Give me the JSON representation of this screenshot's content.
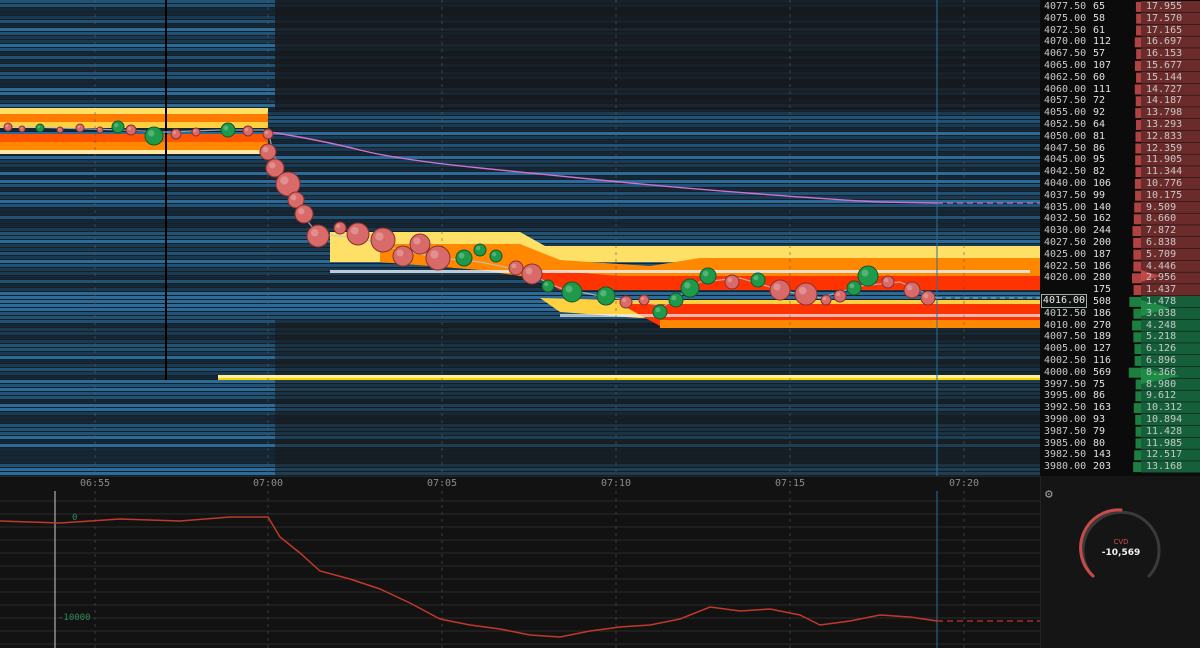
{
  "time_axis": {
    "labels": [
      "06:55",
      "07:00",
      "07:05",
      "07:10",
      "07:15",
      "07:20"
    ]
  },
  "price_ladder": {
    "current_price": "4016.00",
    "rows": [
      {
        "price": "4077.50",
        "vol": "65",
        "cum": "17.955",
        "side": "ask"
      },
      {
        "price": "4075.00",
        "vol": "58",
        "cum": "17.570",
        "side": "ask"
      },
      {
        "price": "4072.50",
        "vol": "61",
        "cum": "17.165",
        "side": "ask"
      },
      {
        "price": "4070.00",
        "vol": "112",
        "cum": "16.697",
        "side": "ask"
      },
      {
        "price": "4067.50",
        "vol": "57",
        "cum": "16.153",
        "side": "ask"
      },
      {
        "price": "4065.00",
        "vol": "107",
        "cum": "15.677",
        "side": "ask"
      },
      {
        "price": "4062.50",
        "vol": "60",
        "cum": "15.144",
        "side": "ask"
      },
      {
        "price": "4060.00",
        "vol": "111",
        "cum": "14.727",
        "side": "ask"
      },
      {
        "price": "4057.50",
        "vol": "72",
        "cum": "14.187",
        "side": "ask"
      },
      {
        "price": "4055.00",
        "vol": "92",
        "cum": "13.798",
        "side": "ask"
      },
      {
        "price": "4052.50",
        "vol": "64",
        "cum": "13.293",
        "side": "ask"
      },
      {
        "price": "4050.00",
        "vol": "81",
        "cum": "12.833",
        "side": "ask"
      },
      {
        "price": "4047.50",
        "vol": "86",
        "cum": "12.359",
        "side": "ask"
      },
      {
        "price": "4045.00",
        "vol": "95",
        "cum": "11.905",
        "side": "ask"
      },
      {
        "price": "4042.50",
        "vol": "82",
        "cum": "11.344",
        "side": "ask"
      },
      {
        "price": "4040.00",
        "vol": "106",
        "cum": "10.776",
        "side": "ask"
      },
      {
        "price": "4037.50",
        "vol": "99",
        "cum": "10.175",
        "side": "ask"
      },
      {
        "price": "4035.00",
        "vol": "140",
        "cum": "9.509",
        "side": "ask"
      },
      {
        "price": "4032.50",
        "vol": "162",
        "cum": "8.660",
        "side": "ask"
      },
      {
        "price": "4030.00",
        "vol": "244",
        "cum": "7.872",
        "side": "ask"
      },
      {
        "price": "4027.50",
        "vol": "200",
        "cum": "6.838",
        "side": "ask"
      },
      {
        "price": "4025.00",
        "vol": "187",
        "cum": "5.709",
        "side": "ask"
      },
      {
        "price": "4022.50",
        "vol": "186",
        "cum": "4.446",
        "side": "ask"
      },
      {
        "price": "4020.00",
        "vol": "280",
        "cum": "2.956",
        "side": "ask"
      },
      {
        "price": "",
        "vol": "175",
        "cum": "1.437",
        "side": "ask"
      },
      {
        "price": "",
        "vol": "508",
        "cum": "1.478",
        "side": "bid"
      },
      {
        "price": "4012.50",
        "vol": "186",
        "cum": "3.038",
        "side": "bid"
      },
      {
        "price": "4010.00",
        "vol": "270",
        "cum": "4.248",
        "side": "bid"
      },
      {
        "price": "4007.50",
        "vol": "189",
        "cum": "5.218",
        "side": "bid"
      },
      {
        "price": "4005.00",
        "vol": "127",
        "cum": "6.126",
        "side": "bid"
      },
      {
        "price": "4002.50",
        "vol": "116",
        "cum": "6.896",
        "side": "bid"
      },
      {
        "price": "4000.00",
        "vol": "569",
        "cum": "8.366",
        "side": "bid"
      },
      {
        "price": "3997.50",
        "vol": "75",
        "cum": "8.980",
        "side": "bid"
      },
      {
        "price": "3995.00",
        "vol": "86",
        "cum": "9.612",
        "side": "bid"
      },
      {
        "price": "3992.50",
        "vol": "163",
        "cum": "10.312",
        "side": "bid"
      },
      {
        "price": "3990.00",
        "vol": "93",
        "cum": "10.894",
        "side": "bid"
      },
      {
        "price": "3987.50",
        "vol": "79",
        "cum": "11.428",
        "side": "bid"
      },
      {
        "price": "3985.00",
        "vol": "80",
        "cum": "11.985",
        "side": "bid"
      },
      {
        "price": "3982.50",
        "vol": "143",
        "cum": "12.517",
        "side": "bid"
      },
      {
        "price": "3980.00",
        "vol": "203",
        "cum": "13.168",
        "side": "bid"
      }
    ]
  },
  "cvd_pane": {
    "level_zero": "0",
    "level_neg": "-10000"
  },
  "cvd_gauge": {
    "label": "CVD",
    "value": "-10,569",
    "icon": "gear-icon"
  },
  "colors": {
    "ask": "#c24848",
    "bid": "#1e8c46",
    "vwap": "#d070d0",
    "cvd_line": "#c0392b",
    "heat_low": "#1d5f86",
    "heat_high": "#ff4400"
  }
}
